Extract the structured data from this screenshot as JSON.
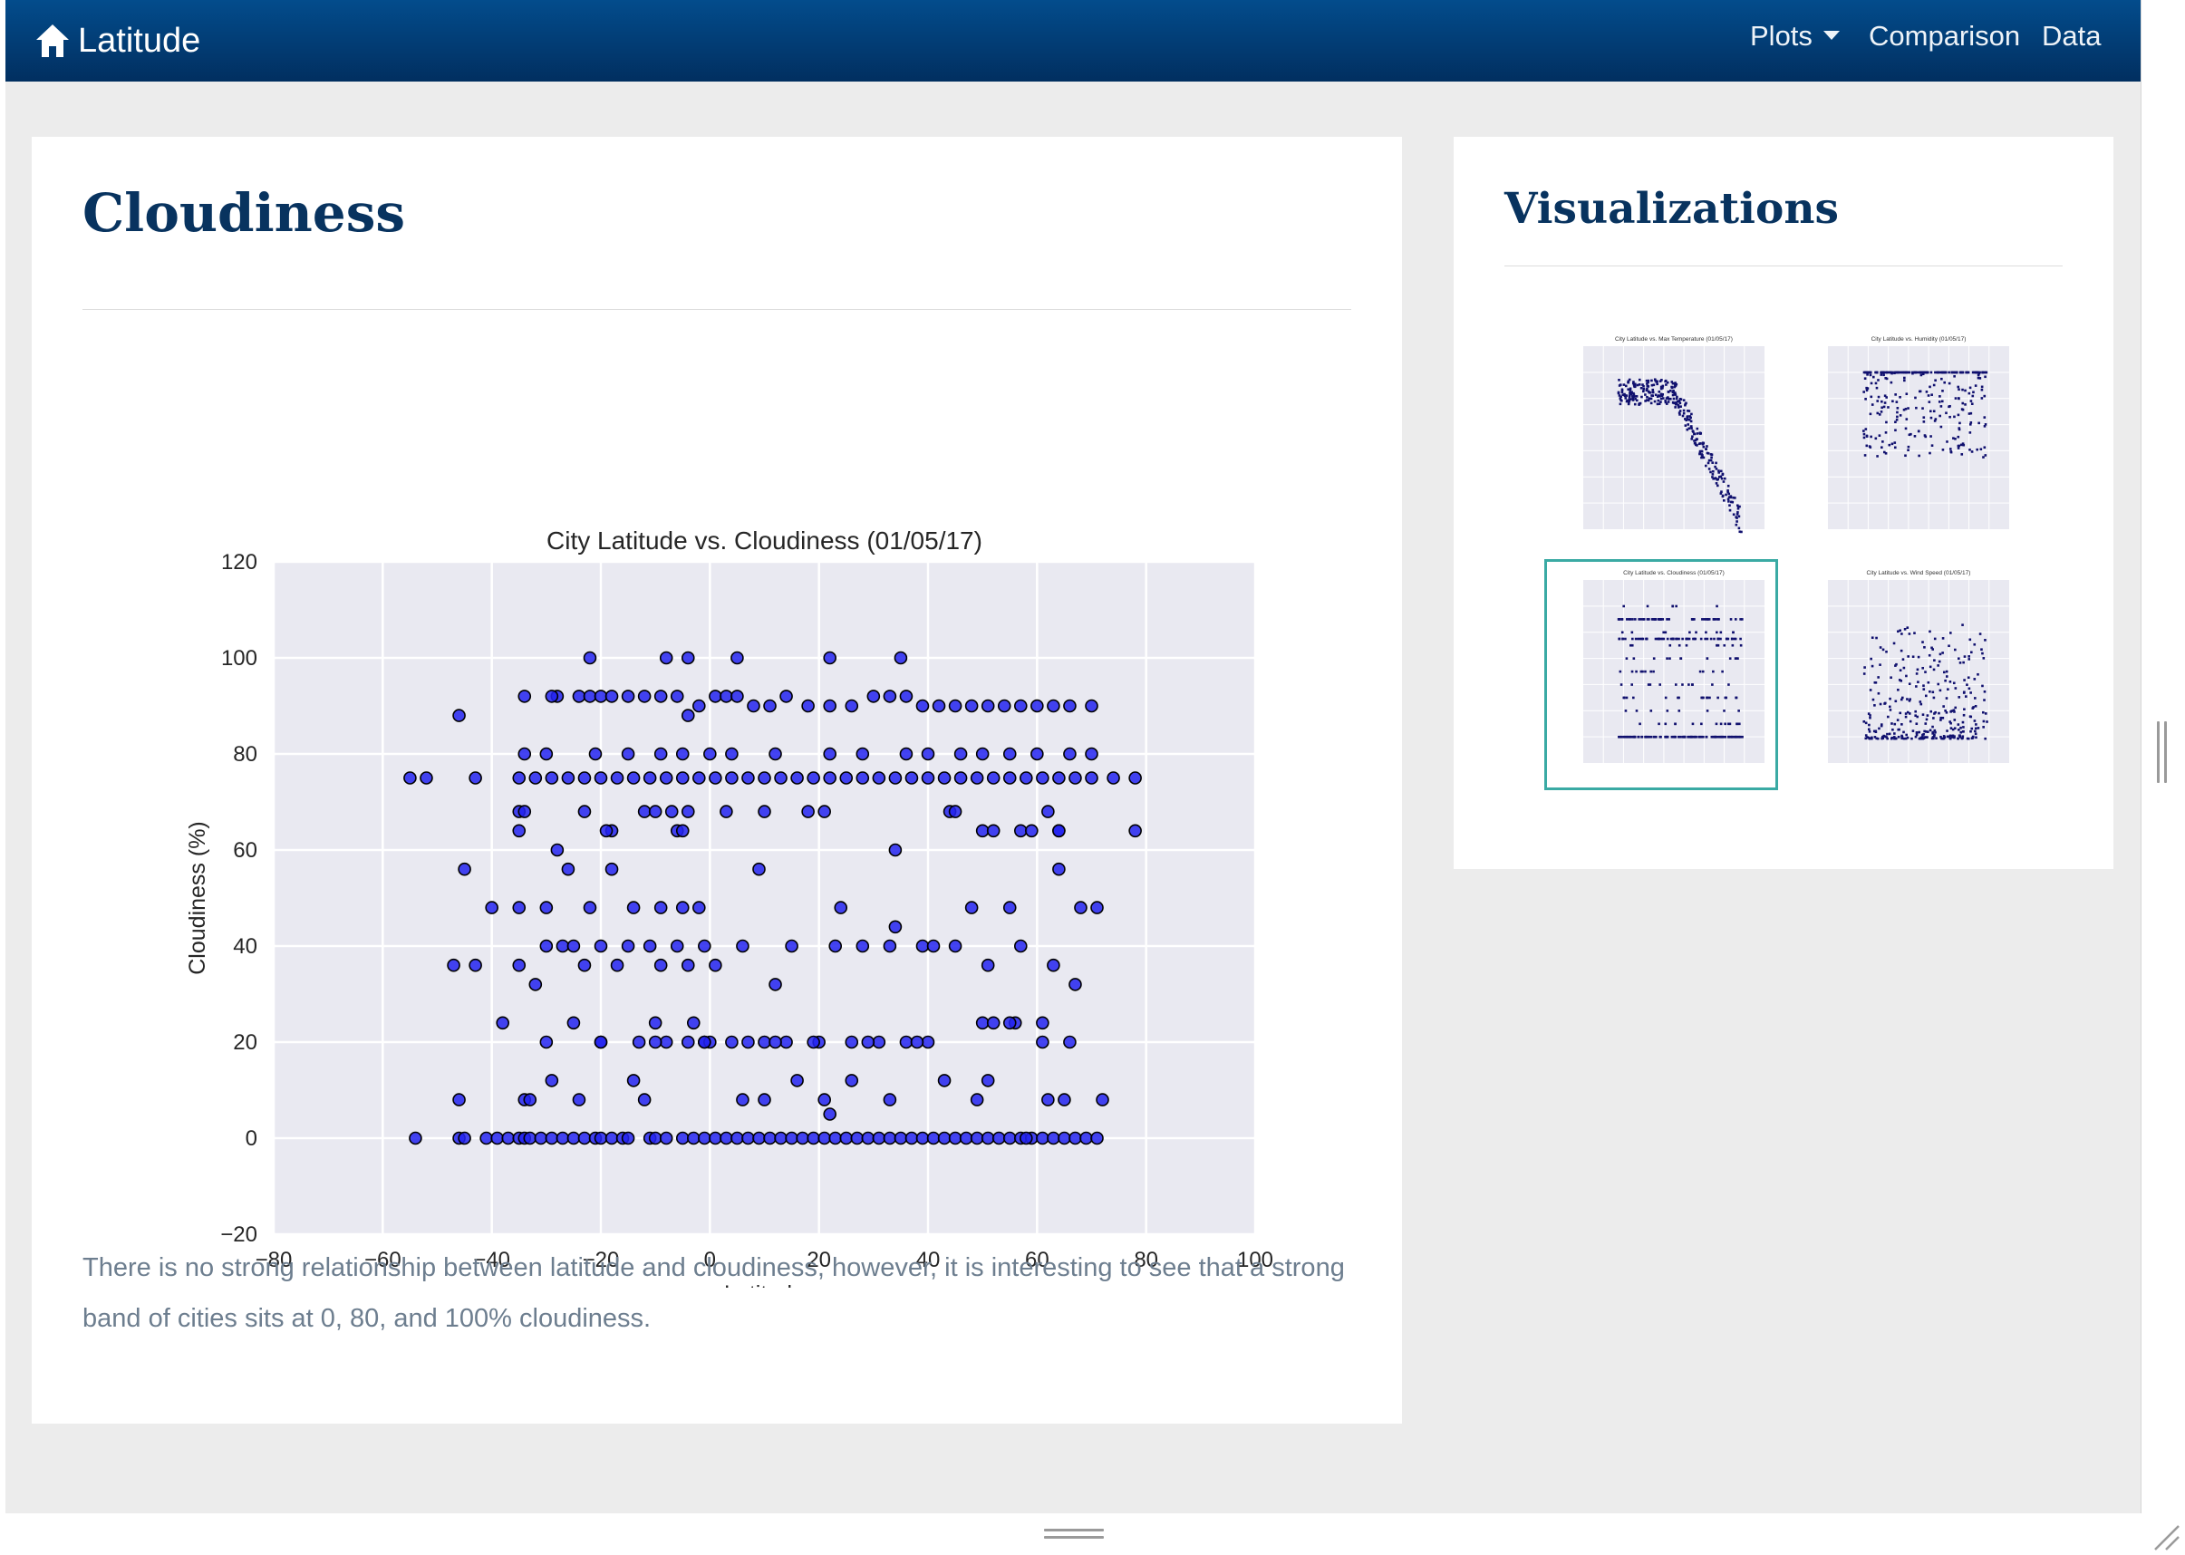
{
  "navbar": {
    "brand": "Latitude",
    "brand_icon": "home-icon",
    "plots_label": "Plots",
    "comparison_label": "Comparison",
    "data_label": "Data",
    "background": "#023e7a"
  },
  "main": {
    "title": "Cloudiness",
    "description": "There is no strong relationship between latitude and cloudiness, however, it is interesting to see that a strong band of cities sits at 0, 80, and 100% cloudiness."
  },
  "sidebar": {
    "title": "Visualizations",
    "thumbnails": [
      {
        "title": "City Latitude vs. Max Temperature (01/05/17)",
        "active": false
      },
      {
        "title": "City Latitude vs. Humidity (01/05/17)",
        "active": false
      },
      {
        "title": "City Latitude vs. Cloudiness (01/05/17)",
        "active": true
      },
      {
        "title": "City Latitude vs. Wind Speed (01/05/17)",
        "active": false
      }
    ],
    "active_border_color": "#3aaaa4"
  },
  "chart_data": {
    "type": "scatter",
    "title": "City Latitude vs. Cloudiness (01/05/17)",
    "xlabel": "Latitude",
    "ylabel": "Cloudiness (%)",
    "xlim": [
      -80,
      100
    ],
    "ylim": [
      -20,
      120
    ],
    "xticks": [
      -80,
      -60,
      -40,
      -20,
      0,
      20,
      40,
      60,
      80,
      100
    ],
    "yticks": [
      -20,
      0,
      20,
      40,
      60,
      80,
      100,
      120
    ],
    "xtick_labels": [
      "−80",
      "−60",
      "−40",
      "−20",
      "0",
      "20",
      "40",
      "60",
      "80",
      "100"
    ],
    "ytick_labels": [
      "−20",
      "0",
      "20",
      "40",
      "60",
      "80",
      "100",
      "120"
    ],
    "grid": true,
    "background": "#e9e9f1",
    "marker_color": "#2323f0",
    "x": [
      -54,
      -46,
      -45,
      -41,
      -39,
      -37,
      -35,
      -34,
      -33,
      -31,
      -29,
      -27,
      -25,
      -23,
      -21,
      -20,
      -18,
      -16,
      -15,
      -11,
      -10,
      -8,
      -5,
      -3,
      -1,
      1,
      3,
      5,
      7,
      9,
      11,
      13,
      15,
      17,
      19,
      21,
      23,
      25,
      27,
      29,
      31,
      33,
      35,
      37,
      39,
      41,
      43,
      45,
      47,
      49,
      51,
      53,
      55,
      57,
      59,
      61,
      63,
      65,
      67,
      69,
      71,
      -46,
      -34,
      -33,
      -29,
      -24,
      -14,
      -12,
      -8,
      -1,
      6,
      10,
      16,
      21,
      22,
      26,
      33,
      43,
      49,
      51,
      58,
      62,
      65,
      72,
      -30,
      -20,
      -13,
      -10,
      -4,
      0,
      4,
      10,
      14,
      20,
      26,
      31,
      36,
      40,
      50,
      56,
      61,
      66,
      -38,
      -25,
      -20,
      -10,
      -3,
      -1,
      7,
      12,
      19,
      29,
      38,
      52,
      55,
      61,
      -47,
      -43,
      -35,
      -32,
      -30,
      -27,
      -25,
      -23,
      -20,
      -17,
      -15,
      -11,
      -9,
      -6,
      -4,
      -1,
      1,
      6,
      12,
      23,
      28,
      33,
      39,
      45,
      51,
      57,
      63,
      67,
      -45,
      -40,
      -35,
      -30,
      -26,
      -22,
      -18,
      -14,
      -9,
      -5,
      -2,
      9,
      15,
      24,
      34,
      41,
      48,
      55,
      64,
      68,
      71,
      -35,
      -28,
      -23,
      -18,
      -12,
      -7,
      -4,
      3,
      18,
      34,
      44,
      50,
      57,
      64,
      -35,
      -34,
      -19,
      -10,
      -6,
      -5,
      10,
      21,
      45,
      52,
      59,
      62,
      64,
      78,
      -55,
      -52,
      -43,
      -35,
      -32,
      -29,
      -26,
      -23,
      -20,
      -17,
      -14,
      -11,
      -8,
      -5,
      -2,
      1,
      4,
      7,
      10,
      13,
      16,
      19,
      22,
      25,
      28,
      31,
      34,
      37,
      40,
      43,
      46,
      49,
      52,
      55,
      58,
      61,
      64,
      67,
      70,
      74,
      78,
      -34,
      -30,
      -21,
      -15,
      -9,
      -5,
      0,
      4,
      12,
      22,
      28,
      36,
      40,
      46,
      50,
      55,
      60,
      66,
      70,
      -46,
      -34,
      -28,
      -24,
      -22,
      -20,
      -18,
      -15,
      -12,
      -9,
      -6,
      -4,
      -2,
      1,
      3,
      5,
      8,
      11,
      14,
      18,
      22,
      26,
      30,
      33,
      36,
      39,
      42,
      45,
      48,
      51,
      54,
      57,
      60,
      63,
      66,
      70,
      -29,
      -22,
      -8,
      -4,
      5,
      22,
      35
    ],
    "y": [
      0,
      0,
      0,
      0,
      0,
      0,
      0,
      0,
      0,
      0,
      0,
      0,
      0,
      0,
      0,
      0,
      0,
      0,
      0,
      0,
      0,
      0,
      0,
      0,
      0,
      0,
      0,
      0,
      0,
      0,
      0,
      0,
      0,
      0,
      0,
      0,
      0,
      0,
      0,
      0,
      0,
      0,
      0,
      0,
      0,
      0,
      0,
      0,
      0,
      0,
      0,
      0,
      0,
      0,
      0,
      0,
      0,
      0,
      0,
      0,
      0,
      8,
      8,
      8,
      12,
      8,
      12,
      8,
      20,
      20,
      8,
      8,
      12,
      8,
      5,
      12,
      8,
      12,
      8,
      12,
      0,
      8,
      8,
      8,
      20,
      20,
      20,
      20,
      20,
      20,
      20,
      20,
      20,
      20,
      20,
      20,
      20,
      20,
      24,
      24,
      20,
      20,
      24,
      24,
      20,
      24,
      24,
      20,
      20,
      20,
      20,
      20,
      20,
      24,
      24,
      24,
      36,
      36,
      36,
      32,
      40,
      40,
      40,
      36,
      40,
      36,
      40,
      40,
      36,
      40,
      36,
      40,
      36,
      40,
      32,
      40,
      40,
      40,
      40,
      40,
      36,
      40,
      36,
      32,
      56,
      48,
      48,
      48,
      56,
      48,
      56,
      48,
      48,
      48,
      48,
      56,
      40,
      48,
      44,
      40,
      48,
      48,
      56,
      48,
      48,
      68,
      60,
      68,
      64,
      68,
      68,
      68,
      68,
      68,
      60,
      68,
      64,
      64,
      64,
      64,
      68,
      64,
      68,
      64,
      64,
      68,
      68,
      68,
      64,
      64,
      68,
      64,
      64,
      75,
      75,
      75,
      75,
      75,
      75,
      75,
      75,
      75,
      75,
      75,
      75,
      75,
      75,
      75,
      75,
      75,
      75,
      75,
      75,
      75,
      75,
      75,
      75,
      75,
      75,
      75,
      75,
      75,
      75,
      75,
      75,
      75,
      75,
      75,
      75,
      75,
      75,
      75,
      75,
      75,
      80,
      80,
      80,
      80,
      80,
      80,
      80,
      80,
      80,
      80,
      80,
      80,
      80,
      80,
      80,
      80,
      80,
      80,
      80,
      88,
      92,
      92,
      92,
      92,
      92,
      92,
      92,
      92,
      92,
      92,
      88,
      90,
      92,
      92,
      92,
      90,
      90,
      92,
      90,
      90,
      90,
      92,
      92,
      92,
      90,
      90,
      90,
      90,
      90,
      90,
      90,
      90,
      90,
      90,
      90,
      92,
      100,
      100,
      100,
      100,
      100,
      100
    ]
  }
}
